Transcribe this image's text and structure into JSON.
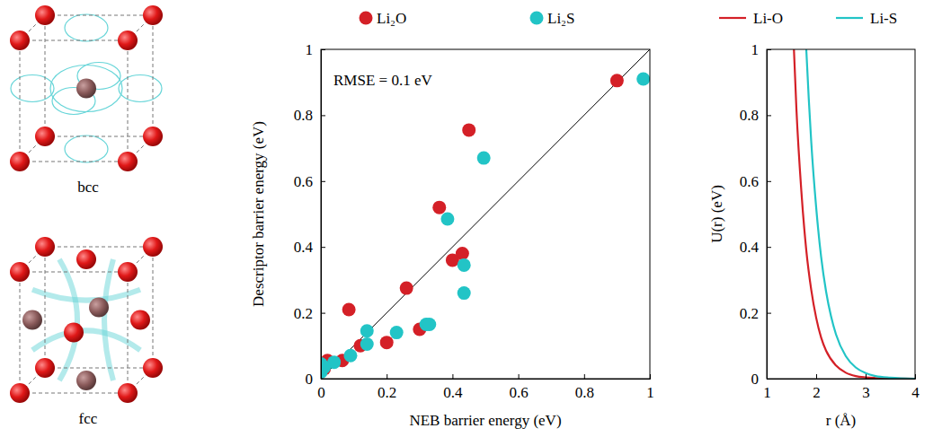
{
  "chart_data": [
    {
      "type": "scatter",
      "x_label": "NEB barrier energy (eV)",
      "y_label": "Descriptor barrier energy (eV)",
      "annotations": [
        "RMSE = 0.1 eV"
      ],
      "xlim": [
        0,
        1
      ],
      "ylim": [
        0,
        1
      ],
      "xticks": [
        0,
        0.2,
        0.4,
        0.6,
        0.8,
        1
      ],
      "yticks": [
        0,
        0.2,
        0.4,
        0.6,
        0.8,
        1
      ],
      "grid": false,
      "legend": "top",
      "marker": "circle",
      "series": [
        {
          "name": "Li₂O",
          "color": "#d42027",
          "x": [
            0.9,
            0.45,
            0.36,
            0.43,
            0.4,
            0.26,
            0.3,
            0.2,
            0.085,
            0.12,
            0.065,
            0.02,
            0.0,
            0.01
          ],
          "values": [
            0.905,
            0.755,
            0.52,
            0.38,
            0.36,
            0.275,
            0.15,
            0.11,
            0.21,
            0.1,
            0.055,
            0.055,
            0.04,
            0.03
          ]
        },
        {
          "name": "Li₂S",
          "color": "#22c4c6",
          "x": [
            0.98,
            0.495,
            0.385,
            0.435,
            0.435,
            0.32,
            0.33,
            0.23,
            0.14,
            0.14,
            0.09,
            0.04,
            0.0,
            0.0,
            0.01
          ],
          "values": [
            0.91,
            0.67,
            0.485,
            0.345,
            0.26,
            0.165,
            0.165,
            0.14,
            0.145,
            0.105,
            0.07,
            0.05,
            0.02,
            0.045,
            0.035
          ]
        }
      ]
    },
    {
      "type": "line",
      "x_label": "r (Å)",
      "y_label": "U(r) (eV)",
      "xlim": [
        1,
        4
      ],
      "ylim": [
        0,
        1
      ],
      "xticks": [
        1,
        2,
        3,
        4
      ],
      "yticks": [
        0,
        0.2,
        0.4,
        0.6,
        0.8,
        1
      ],
      "grid": false,
      "legend": "top",
      "line_style": "solid",
      "series": [
        {
          "name": "Li-O",
          "color": "#d42027",
          "x": [
            1.55,
            1.6,
            1.7,
            1.8,
            1.9,
            2.0,
            2.1,
            2.2,
            2.4,
            2.6,
            2.8,
            3.0,
            3.2,
            3.5,
            4.0
          ],
          "values": [
            1.0,
            0.82,
            0.57,
            0.39,
            0.27,
            0.185,
            0.125,
            0.085,
            0.04,
            0.018,
            0.008,
            0.004,
            0.002,
            0.0005,
            0
          ]
        },
        {
          "name": "Li-S",
          "color": "#22c4c6",
          "x": [
            1.8,
            1.85,
            1.9,
            2.0,
            2.1,
            2.2,
            2.3,
            2.4,
            2.6,
            2.8,
            3.0,
            3.2,
            3.5,
            4.0
          ],
          "values": [
            1.0,
            0.85,
            0.72,
            0.52,
            0.37,
            0.265,
            0.19,
            0.135,
            0.068,
            0.034,
            0.017,
            0.008,
            0.003,
            0
          ]
        }
      ]
    }
  ],
  "structures": [
    {
      "label": "bcc"
    },
    {
      "label": "fcc"
    }
  ]
}
